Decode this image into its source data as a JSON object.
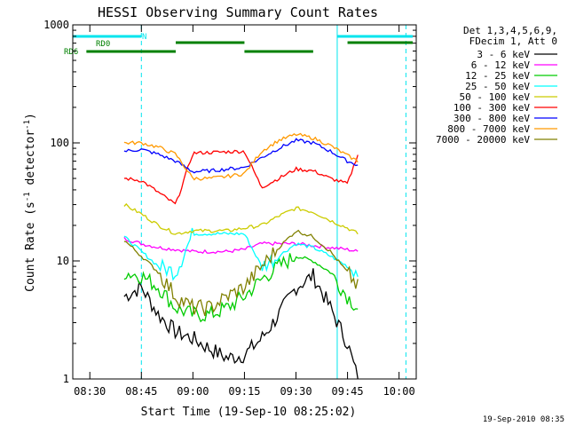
{
  "chart_data": {
    "type": "line",
    "title": "HESSI Observing Summary Count Rates",
    "xlabel": "Start Time (19-Sep-10 08:25:02)",
    "ylabel_main": "Count Rate (s",
    "ylabel_sup1": "-1",
    "ylabel_mid": " detector",
    "ylabel_sup2": "-1",
    "ylabel_end": ")",
    "footer": "19-Sep-2010 08:35",
    "y_scale": "log",
    "ylim": [
      1,
      1000
    ],
    "xlim": [
      "08:25:02",
      "10:05:00"
    ],
    "x_ticks": [
      "08:30",
      "08:45",
      "09:00",
      "09:15",
      "09:30",
      "09:45",
      "10:00"
    ],
    "y_ticks": [
      "1",
      "10",
      "100",
      "1000"
    ],
    "legend_header": [
      "Det 1,3,4,5,6,9,",
      "FDecim 1, Att 0"
    ],
    "series": [
      {
        "name": "3 - 6 keV",
        "color": "#000000",
        "points": [
          [
            "08:40",
            5
          ],
          [
            "08:45",
            6
          ],
          [
            "08:50",
            3.5
          ],
          [
            "08:55",
            2.5
          ],
          [
            "09:00",
            2.2
          ],
          [
            "09:05",
            1.8
          ],
          [
            "09:10",
            1.5
          ],
          [
            "09:15",
            1.6
          ],
          [
            "09:20",
            2.2
          ],
          [
            "09:25",
            3.5
          ],
          [
            "09:30",
            6
          ],
          [
            "09:35",
            7.5
          ],
          [
            "09:40",
            4
          ],
          [
            "09:45",
            2
          ],
          [
            "09:48",
            1
          ]
        ]
      },
      {
        "name": "6 - 12 keV",
        "color": "#ff00ff",
        "points": [
          [
            "08:40",
            15.5
          ],
          [
            "08:45",
            14
          ],
          [
            "08:50",
            13
          ],
          [
            "08:55",
            12.5
          ],
          [
            "09:00",
            12
          ],
          [
            "09:05",
            12
          ],
          [
            "09:10",
            12
          ],
          [
            "09:15",
            12.5
          ],
          [
            "09:20",
            14
          ],
          [
            "09:25",
            14
          ],
          [
            "09:30",
            14
          ],
          [
            "09:35",
            13.5
          ],
          [
            "09:40",
            13
          ],
          [
            "09:45",
            12.5
          ],
          [
            "09:48",
            12
          ]
        ]
      },
      {
        "name": "12 - 25 keV",
        "color": "#00cc00",
        "points": [
          [
            "08:40",
            8
          ],
          [
            "08:45",
            7.5
          ],
          [
            "08:50",
            6
          ],
          [
            "08:55",
            4
          ],
          [
            "09:00",
            3.5
          ],
          [
            "09:05",
            3.5
          ],
          [
            "09:10",
            4
          ],
          [
            "09:15",
            5
          ],
          [
            "09:20",
            7
          ],
          [
            "09:25",
            9
          ],
          [
            "09:30",
            11
          ],
          [
            "09:35",
            10
          ],
          [
            "09:40",
            8
          ],
          [
            "09:45",
            5
          ],
          [
            "09:48",
            4
          ]
        ]
      },
      {
        "name": "25 - 50 keV",
        "color": "#00ffff",
        "points": [
          [
            "08:40",
            16
          ],
          [
            "08:45",
            12
          ],
          [
            "08:50",
            9
          ],
          [
            "08:55",
            8
          ],
          [
            "09:00",
            17
          ],
          [
            "09:05",
            17
          ],
          [
            "09:10",
            17
          ],
          [
            "09:15",
            17
          ],
          [
            "09:20",
            9
          ],
          [
            "09:25",
            11
          ],
          [
            "09:30",
            14
          ],
          [
            "09:35",
            13
          ],
          [
            "09:40",
            11
          ],
          [
            "09:45",
            9
          ],
          [
            "09:48",
            8
          ]
        ]
      },
      {
        "name": "50 - 100 keV",
        "color": "#cccc00",
        "points": [
          [
            "08:40",
            30
          ],
          [
            "08:45",
            25
          ],
          [
            "08:50",
            20
          ],
          [
            "08:55",
            17
          ],
          [
            "09:00",
            18
          ],
          [
            "09:05",
            18
          ],
          [
            "09:10",
            18
          ],
          [
            "09:15",
            19
          ],
          [
            "09:20",
            20
          ],
          [
            "09:25",
            24
          ],
          [
            "09:30",
            28
          ],
          [
            "09:35",
            26
          ],
          [
            "09:40",
            22
          ],
          [
            "09:45",
            19
          ],
          [
            "09:48",
            17
          ]
        ]
      },
      {
        "name": "100 - 300 keV",
        "color": "#ff0000",
        "points": [
          [
            "08:40",
            50
          ],
          [
            "08:45",
            48
          ],
          [
            "08:50",
            38
          ],
          [
            "08:55",
            30
          ],
          [
            "09:00",
            82
          ],
          [
            "09:05",
            83
          ],
          [
            "09:10",
            84
          ],
          [
            "09:15",
            85
          ],
          [
            "09:20",
            42
          ],
          [
            "09:25",
            50
          ],
          [
            "09:30",
            60
          ],
          [
            "09:35",
            58
          ],
          [
            "09:40",
            50
          ],
          [
            "09:45",
            45
          ],
          [
            "09:48",
            80
          ]
        ]
      },
      {
        "name": "300 - 800 keV",
        "color": "#0000ff",
        "points": [
          [
            "08:40",
            85
          ],
          [
            "08:45",
            88
          ],
          [
            "08:50",
            80
          ],
          [
            "08:55",
            70
          ],
          [
            "09:00",
            57
          ],
          [
            "09:05",
            58
          ],
          [
            "09:10",
            60
          ],
          [
            "09:15",
            62
          ],
          [
            "09:20",
            75
          ],
          [
            "09:25",
            90
          ],
          [
            "09:30",
            105
          ],
          [
            "09:35",
            100
          ],
          [
            "09:40",
            85
          ],
          [
            "09:45",
            70
          ],
          [
            "09:48",
            65
          ]
        ]
      },
      {
        "name": "800 - 7000 keV",
        "color": "#ff9900",
        "points": [
          [
            "08:40",
            100
          ],
          [
            "08:45",
            100
          ],
          [
            "08:50",
            92
          ],
          [
            "08:55",
            80
          ],
          [
            "09:00",
            50
          ],
          [
            "09:05",
            50
          ],
          [
            "09:10",
            52
          ],
          [
            "09:15",
            55
          ],
          [
            "09:20",
            85
          ],
          [
            "09:25",
            105
          ],
          [
            "09:30",
            118
          ],
          [
            "09:35",
            110
          ],
          [
            "09:40",
            95
          ],
          [
            "09:45",
            78
          ],
          [
            "09:48",
            70
          ]
        ]
      },
      {
        "name": "7000 - 20000 keV",
        "color": "#808000",
        "points": [
          [
            "08:40",
            15
          ],
          [
            "08:45",
            11
          ],
          [
            "08:50",
            8
          ],
          [
            "08:55",
            5
          ],
          [
            "09:00",
            4
          ],
          [
            "09:05",
            4
          ],
          [
            "09:10",
            5
          ],
          [
            "09:15",
            6
          ],
          [
            "09:20",
            9
          ],
          [
            "09:25",
            13
          ],
          [
            "09:30",
            18
          ],
          [
            "09:35",
            16
          ],
          [
            "09:40",
            12
          ],
          [
            "09:45",
            8
          ],
          [
            "09:48",
            6
          ]
        ]
      }
    ],
    "bars": [
      {
        "label": "N",
        "color": "#00e5ee",
        "segments": [
          [
            "08:25:02",
            "08:45"
          ],
          [
            "09:42",
            "10:05"
          ]
        ]
      },
      {
        "label": "RD0",
        "color": "#008000",
        "segments": [
          [
            "08:55",
            "09:15"
          ],
          [
            "09:45",
            "10:05"
          ]
        ]
      },
      {
        "label": "RD6",
        "color": "#008000",
        "segments": [
          [
            "08:29",
            "08:55"
          ],
          [
            "09:15",
            "09:35"
          ]
        ]
      }
    ],
    "vlines_solid": [
      "08:25:02",
      "09:42"
    ],
    "vlines_dashed": [
      "08:45",
      "10:02"
    ]
  }
}
